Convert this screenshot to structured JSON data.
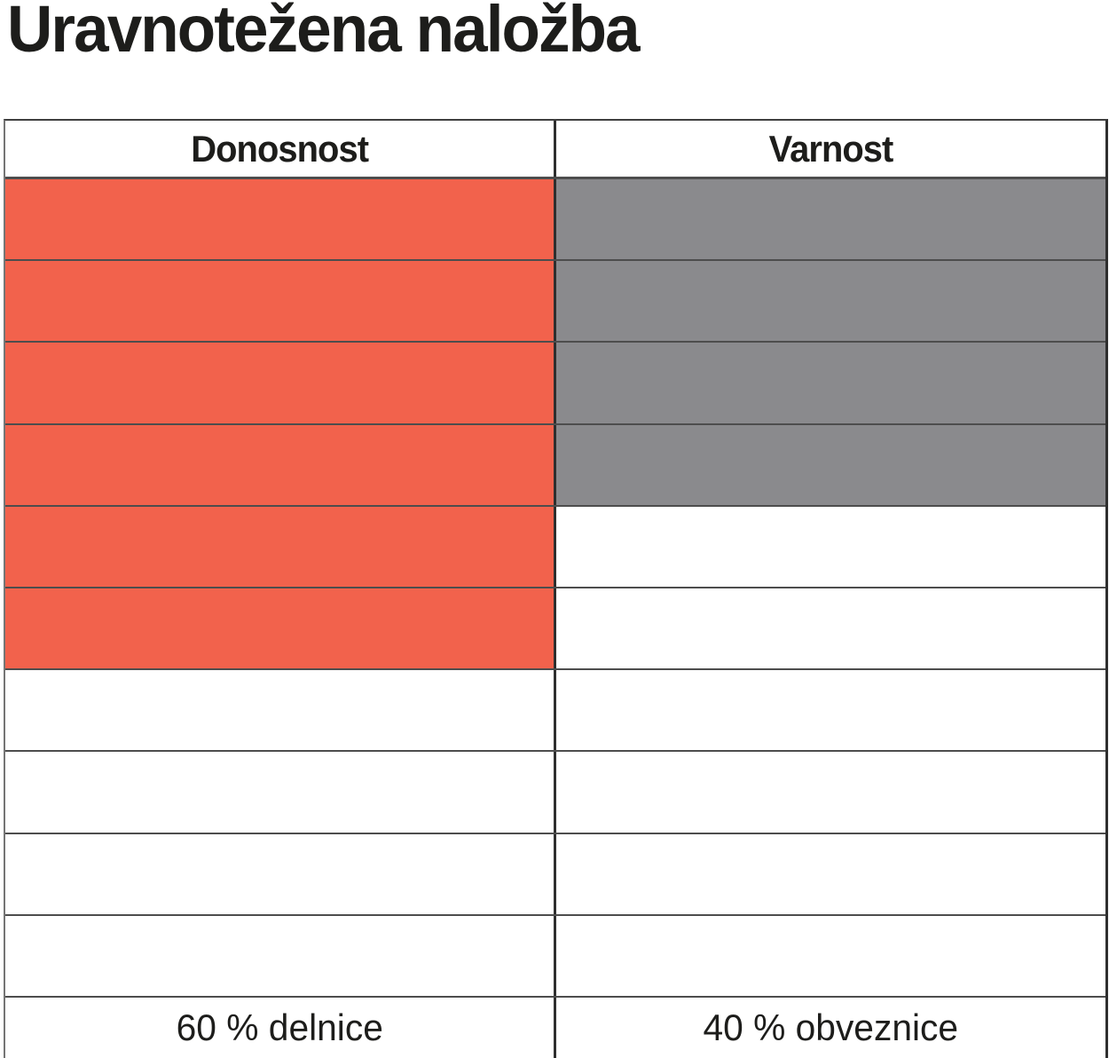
{
  "title": "Uravnotežena naložba",
  "colors": {
    "stocks_fill": "#F2624C",
    "bonds_fill": "#8A8A8D",
    "grid_line": "#4d4d4d",
    "text": "#1d1d1b"
  },
  "chart_data": {
    "type": "table",
    "title": "Uravnotežena naložba",
    "total_rows": 10,
    "columns": [
      {
        "key": "donosnost",
        "header": "Donosnost",
        "footer_label": "60 % delnice",
        "value_pct": 60,
        "filled_rows": 6,
        "fill_color": "#F2624C"
      },
      {
        "key": "varnost",
        "header": "Varnost",
        "footer_label": "40 % obveznice",
        "value_pct": 40,
        "filled_rows": 4,
        "fill_color": "#8A8A8D"
      }
    ],
    "legend_position": "bottom",
    "grid": true
  }
}
